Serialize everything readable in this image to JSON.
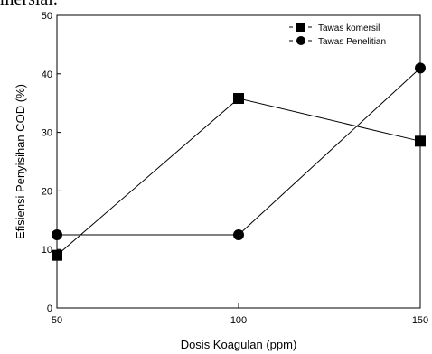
{
  "cropped_top_text": "mersial.",
  "chart_data": {
    "type": "line",
    "x": [
      50,
      100,
      150
    ],
    "xlabel": "Dosis Koagulan (ppm)",
    "ylabel": "Efisiensi Penyisihan COD (%)",
    "xlim": [
      50,
      150
    ],
    "ylim": [
      0,
      50
    ],
    "xticks": [
      "50",
      "100",
      "150"
    ],
    "yticks": [
      "0",
      "10",
      "20",
      "30",
      "40",
      "50"
    ],
    "grid": false,
    "legend_position": "top-right",
    "series": [
      {
        "name": "Tawas komersil",
        "marker": "square",
        "color": "#000000",
        "values": [
          9,
          35.8,
          28.5
        ]
      },
      {
        "name": "Tawas Penelitian",
        "marker": "circle",
        "color": "#000000",
        "values": [
          12.5,
          12.5,
          41
        ]
      }
    ]
  }
}
